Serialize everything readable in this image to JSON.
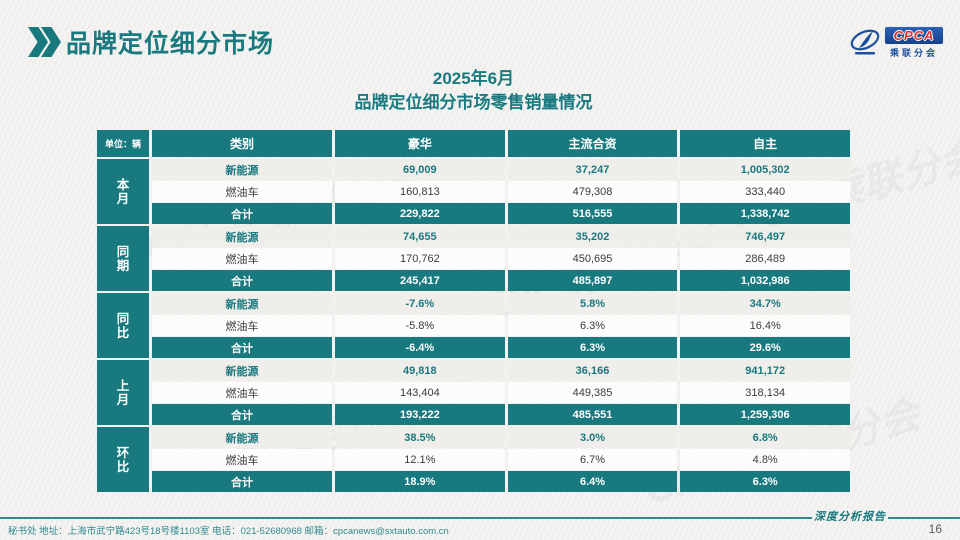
{
  "page": {
    "header": {
      "title": "品牌定位细分市场"
    },
    "logo": {
      "abbr": "CPCA",
      "name_cn": "乘联分会"
    },
    "table_title": {
      "line1": "2025年6月",
      "line2": "品牌定位细分市场零售销量情况"
    },
    "footer": {
      "left_text": "秘书处  地址：上海市武宁路423号18号楼1103室  电话：021-52680968   邮箱：cpcanews@sxtauto.com.cn",
      "report_label": "深度分析报告",
      "page_number": "16"
    },
    "watermark_text": "CPCA 乘联分会",
    "colors": {
      "accent_teal": "#18797f",
      "logo_blue": "#1d4f9e",
      "logo_red": "#e23328",
      "ev_row_bg": "#efeeea",
      "fuel_row_bg": "#fcfcfa",
      "page_bg": "#f2f1ef"
    }
  },
  "chart_data": {
    "type": "table",
    "title": "2025年6月品牌定位细分市场零售销量情况",
    "unit_label": "单位：辆",
    "columns": [
      "类别",
      "豪华",
      "主流合资",
      "自主"
    ],
    "groups": [
      {
        "label": "本月",
        "rows": [
          {
            "label": "新能源",
            "type": "ev",
            "values": [
              "69,009",
              "37,247",
              "1,005,302"
            ]
          },
          {
            "label": "燃油车",
            "type": "fuel",
            "values": [
              "160,813",
              "479,308",
              "333,440"
            ]
          },
          {
            "label": "合计",
            "type": "total",
            "values": [
              "229,822",
              "516,555",
              "1,338,742"
            ]
          }
        ]
      },
      {
        "label": "同期",
        "rows": [
          {
            "label": "新能源",
            "type": "ev",
            "values": [
              "74,655",
              "35,202",
              "746,497"
            ]
          },
          {
            "label": "燃油车",
            "type": "fuel",
            "values": [
              "170,762",
              "450,695",
              "286,489"
            ]
          },
          {
            "label": "合计",
            "type": "total",
            "values": [
              "245,417",
              "485,897",
              "1,032,986"
            ]
          }
        ]
      },
      {
        "label": "同比",
        "rows": [
          {
            "label": "新能源",
            "type": "ev",
            "values": [
              "-7.6%",
              "5.8%",
              "34.7%"
            ]
          },
          {
            "label": "燃油车",
            "type": "fuel",
            "values": [
              "-5.8%",
              "6.3%",
              "16.4%"
            ]
          },
          {
            "label": "合计",
            "type": "total",
            "values": [
              "-6.4%",
              "6.3%",
              "29.6%"
            ]
          }
        ]
      },
      {
        "label": "上月",
        "rows": [
          {
            "label": "新能源",
            "type": "ev",
            "values": [
              "49,818",
              "36,166",
              "941,172"
            ]
          },
          {
            "label": "燃油车",
            "type": "fuel",
            "values": [
              "143,404",
              "449,385",
              "318,134"
            ]
          },
          {
            "label": "合计",
            "type": "total",
            "values": [
              "193,222",
              "485,551",
              "1,259,306"
            ]
          }
        ]
      },
      {
        "label": "环比",
        "rows": [
          {
            "label": "新能源",
            "type": "ev",
            "values": [
              "38.5%",
              "3.0%",
              "6.8%"
            ]
          },
          {
            "label": "燃油车",
            "type": "fuel",
            "values": [
              "12.1%",
              "6.7%",
              "4.8%"
            ]
          },
          {
            "label": "合计",
            "type": "total",
            "values": [
              "18.9%",
              "6.4%",
              "6.3%"
            ]
          }
        ]
      }
    ]
  }
}
